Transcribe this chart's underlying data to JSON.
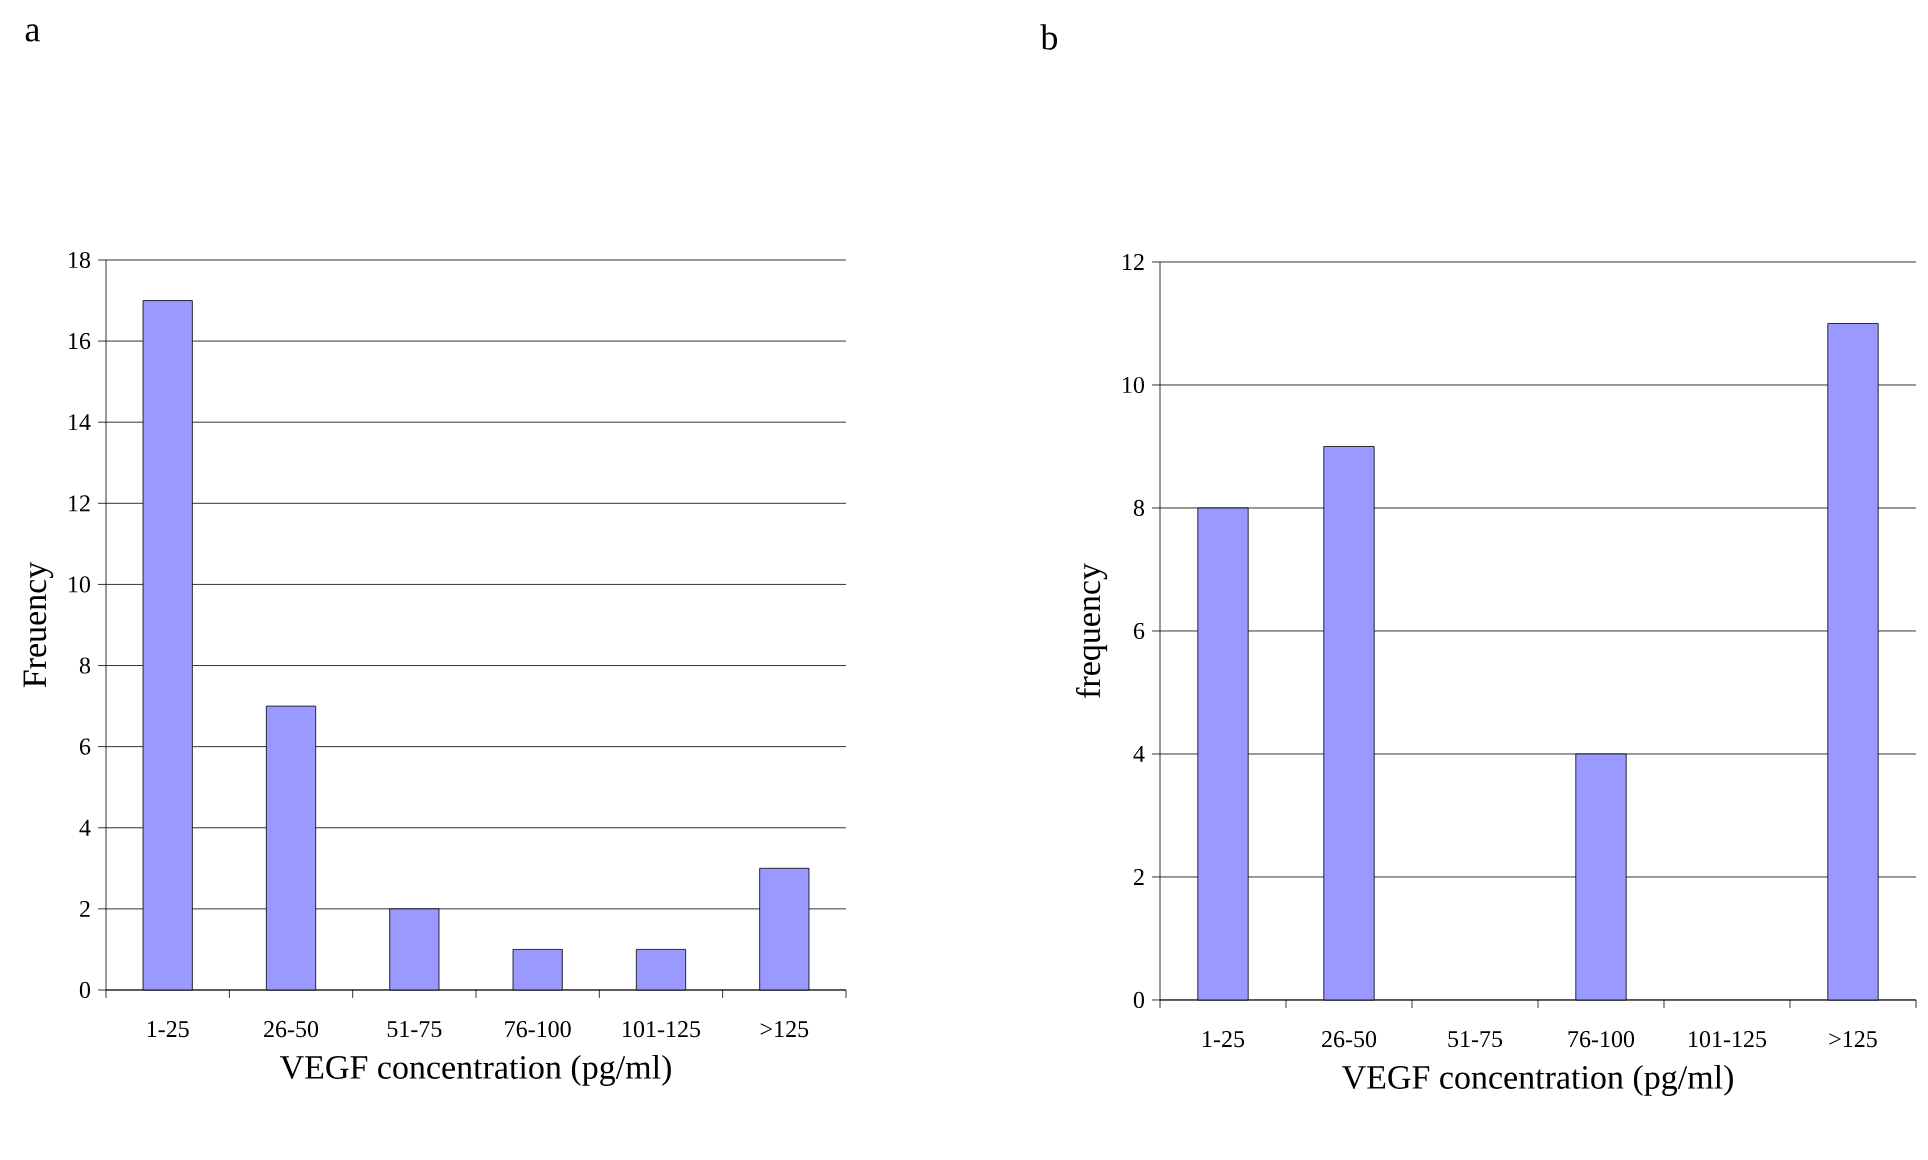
{
  "chart_data": [
    {
      "type": "bar",
      "title": "a",
      "xlabel": "VEGF concentration (pg/ml)",
      "ylabel": "Freuency",
      "categories": [
        "1-25",
        "26-50",
        "51-75",
        "76-100",
        "101-125",
        ">125"
      ],
      "values": [
        17,
        7,
        2,
        1,
        1,
        3
      ],
      "color": "#9999ff",
      "ylim": [
        0,
        18
      ],
      "yticks": [
        0,
        2,
        4,
        6,
        8,
        10,
        12,
        14,
        16,
        18
      ],
      "grid": "y"
    },
    {
      "type": "bar",
      "title": "b",
      "xlabel": "VEGF concentration (pg/ml)",
      "ylabel": "frequency",
      "categories": [
        "1-25",
        "26-50",
        "51-75",
        "76-100",
        "101-125",
        ">125"
      ],
      "values": [
        8,
        9,
        0,
        4,
        0,
        11
      ],
      "color": "#9999ff",
      "ylim": [
        0,
        12
      ],
      "yticks": [
        0,
        2,
        4,
        6,
        8,
        10,
        12
      ],
      "grid": "y"
    }
  ]
}
